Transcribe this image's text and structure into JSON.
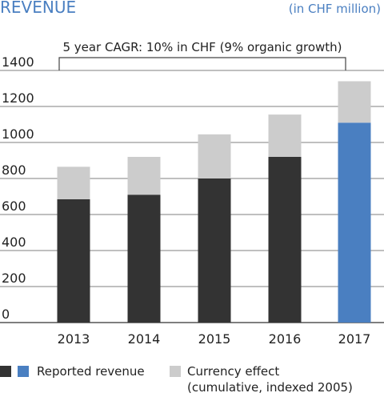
{
  "chart_data": {
    "type": "bar",
    "stacked": true,
    "title": "REVENUE",
    "unit_label": "(in CHF million)",
    "annotation": "5 year CAGR: 10% in CHF (9% organic growth)",
    "categories": [
      "2013",
      "2014",
      "2015",
      "2016",
      "2017"
    ],
    "ylim": [
      0,
      1400
    ],
    "yticks": [
      0,
      200,
      400,
      600,
      800,
      1000,
      1200,
      1400
    ],
    "gridlines": true,
    "series": [
      {
        "name": "Reported revenue",
        "values": [
          685,
          710,
          800,
          920,
          1110
        ],
        "colors": [
          "#333333",
          "#333333",
          "#333333",
          "#333333",
          "#4a7fc1"
        ]
      },
      {
        "name": "Currency effect (cumulative, indexed 2005)",
        "values": [
          180,
          210,
          245,
          235,
          230
        ],
        "colors": [
          "#cccccc",
          "#cccccc",
          "#cccccc",
          "#cccccc",
          "#cccccc"
        ]
      }
    ],
    "legend": {
      "position": "bottom",
      "items": [
        {
          "label": "Reported revenue",
          "swatches": [
            "#333333",
            "#4a7fc1"
          ]
        },
        {
          "label_lines": [
            "Currency effect",
            "(cumulative, indexed 2005)"
          ],
          "swatches": [
            "#cccccc"
          ]
        }
      ]
    }
  }
}
